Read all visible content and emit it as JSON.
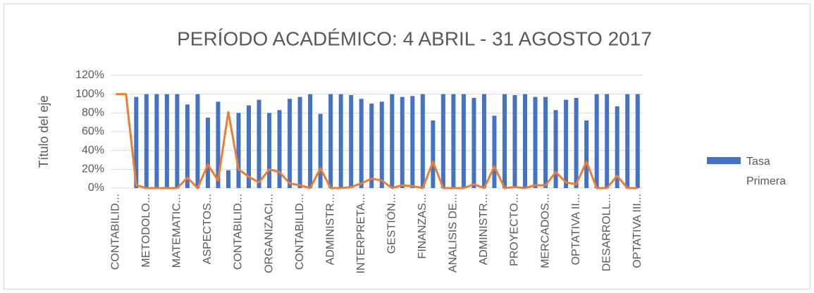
{
  "chart_data": {
    "type": "bar",
    "title": "PERÍODO ACADÉMICO: 4 ABRIL - 31 AGOSTO 2017",
    "y_label": "Título del eje",
    "categories": [
      "CONTABILID...",
      null,
      null,
      "METODOLO...",
      null,
      null,
      "MATEMATIC...",
      null,
      null,
      "ASPECTOS...",
      null,
      null,
      "CONTABILID...",
      null,
      null,
      "ORGANIZACI...",
      null,
      null,
      "CONTABILID...",
      null,
      null,
      "ADMINISTR...",
      null,
      null,
      "INTERPRETA...",
      null,
      null,
      "GESTIÓN...",
      null,
      null,
      "FINANZAS...",
      null,
      null,
      "ANALISIS DE...",
      null,
      null,
      "ADMINISTR...",
      null,
      null,
      "PROYECTO...",
      null,
      null,
      "MERCADOS...",
      null,
      null,
      "OPTATIVA II...",
      null,
      null,
      "DESARROLL...",
      null,
      null,
      "OPTATIVA III..."
    ],
    "series": [
      {
        "name": "Tasa Primera",
        "type": "bar",
        "color": "#4472c4",
        "values": [
          0,
          0,
          97,
          100,
          100,
          100,
          100,
          89,
          100,
          75,
          92,
          19,
          80,
          88,
          94,
          80,
          83,
          95,
          97,
          100,
          79,
          100,
          100,
          99,
          95,
          90,
          92,
          100,
          97,
          98,
          100,
          72,
          100,
          100,
          100,
          96,
          100,
          77,
          100,
          99,
          100,
          97,
          97,
          83,
          94,
          96,
          72,
          100,
          100,
          87,
          100,
          100
        ]
      },
      {
        "type": "line",
        "color": "#ed7d31",
        "values": [
          100,
          100,
          3,
          0,
          0,
          0,
          0,
          11,
          0,
          25,
          8,
          81,
          20,
          12,
          6,
          20,
          17,
          5,
          3,
          0,
          21,
          0,
          0,
          1,
          5,
          10,
          8,
          0,
          3,
          2,
          0,
          28,
          0,
          0,
          0,
          4,
          0,
          23,
          0,
          1,
          0,
          3,
          3,
          17,
          6,
          4,
          28,
          0,
          0,
          13,
          0,
          0
        ]
      }
    ],
    "ylim": [
      0,
      120
    ],
    "yticks": [
      {
        "value": 0,
        "label": "0%"
      },
      {
        "value": 20,
        "label": "20%"
      },
      {
        "value": 40,
        "label": "40%"
      },
      {
        "value": 60,
        "label": "60%"
      },
      {
        "value": 80,
        "label": "80%"
      },
      {
        "value": 100,
        "label": "100%"
      },
      {
        "value": 120,
        "label": "120%"
      }
    ],
    "grid": true,
    "legend": "right"
  }
}
